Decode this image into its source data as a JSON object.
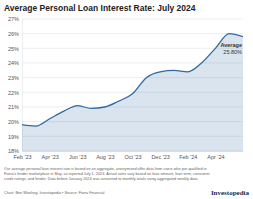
{
  "chart_data": {
    "type": "area",
    "title": "Average Personal Loan Interest Rate: July 2024",
    "categories": [
      "Feb '23",
      null,
      "Apr '23",
      null,
      "Jun '23",
      null,
      "Aug '23",
      null,
      "Oct '23",
      null,
      "Dec '23",
      null,
      "Feb '24",
      null,
      "Apr '24",
      null,
      null
    ],
    "values": [
      19.8,
      19.7,
      20.2,
      20.7,
      21.1,
      20.9,
      21.0,
      21.4,
      21.9,
      23.0,
      23.4,
      23.5,
      23.4,
      24.0,
      25.0,
      26.0,
      25.8
    ],
    "color": "#2f6aa3",
    "ylim": [
      18,
      27
    ],
    "yticks": [
      {
        "value": 18,
        "label": "18%"
      },
      {
        "value": 19,
        "label": "19%"
      },
      {
        "value": 20,
        "label": "20%"
      },
      {
        "value": 21,
        "label": "21%"
      },
      {
        "value": 22,
        "label": "22%"
      },
      {
        "value": 23,
        "label": "23%"
      },
      {
        "value": 24,
        "label": "24%"
      },
      {
        "value": 25,
        "label": "25%"
      },
      {
        "value": 26,
        "label": "26%"
      },
      {
        "value": 27,
        "label": "27%"
      }
    ],
    "grid": true,
    "annotations": [
      {
        "x": 16,
        "y": 25.8,
        "text": "Average",
        "label": "25.80%"
      }
    ],
    "caption": [
      "Our average personal loan interest rate is based on an aggregate, anonymized offer data from users who pre-qualified in",
      "Fiona's lender marketplace in May, as reported July 1, 2024. Actual rates vary based on loan amount, loan term, consumer",
      "credit ratings, and lender. Data before January 2024 was converted to monthly totals using aggregated weekly data."
    ],
    "source": "Chart: Ben Woolsey, Investopedia • Source: Fiona Financial",
    "logo": "Investopedia"
  }
}
